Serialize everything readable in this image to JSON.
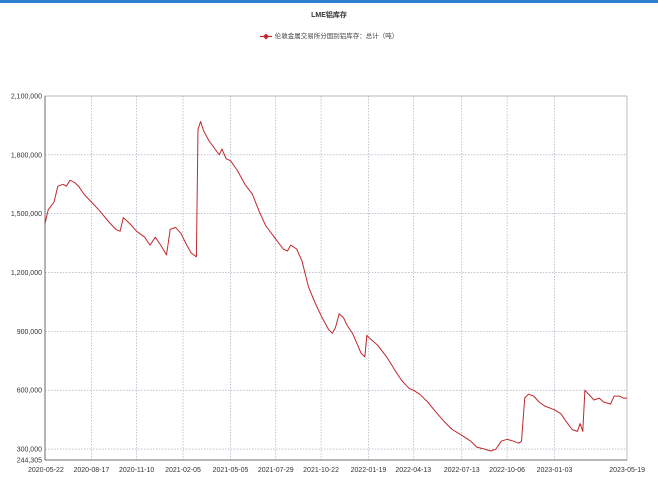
{
  "chart_data": {
    "type": "line",
    "title": "LME铝库存",
    "legend_position": "top-center",
    "grid": true,
    "series": [
      {
        "name": "伦敦金属交易所分国别铝库存：总计（吨）",
        "color": "#c0282d",
        "points": [
          [
            "2020-05-22",
            1450000
          ],
          [
            "2020-05-28",
            1520000
          ],
          [
            "2020-06-08",
            1560000
          ],
          [
            "2020-06-15",
            1640000
          ],
          [
            "2020-06-25",
            1650000
          ],
          [
            "2020-07-01",
            1640000
          ],
          [
            "2020-07-08",
            1670000
          ],
          [
            "2020-07-16",
            1660000
          ],
          [
            "2020-07-24",
            1640000
          ],
          [
            "2020-08-03",
            1600000
          ],
          [
            "2020-08-17",
            1560000
          ],
          [
            "2020-09-03",
            1510000
          ],
          [
            "2020-09-18",
            1460000
          ],
          [
            "2020-10-02",
            1420000
          ],
          [
            "2020-10-10",
            1410000
          ],
          [
            "2020-10-16",
            1480000
          ],
          [
            "2020-10-28",
            1450000
          ],
          [
            "2020-11-10",
            1410000
          ],
          [
            "2020-11-25",
            1380000
          ],
          [
            "2020-12-05",
            1340000
          ],
          [
            "2020-12-15",
            1380000
          ],
          [
            "2020-12-25",
            1340000
          ],
          [
            "2021-01-05",
            1290000
          ],
          [
            "2021-01-12",
            1420000
          ],
          [
            "2021-01-22",
            1430000
          ],
          [
            "2021-02-01",
            1400000
          ],
          [
            "2021-02-10",
            1350000
          ],
          [
            "2021-02-20",
            1300000
          ],
          [
            "2021-03-02",
            1280000
          ],
          [
            "2021-03-05",
            1930000
          ],
          [
            "2021-03-10",
            1970000
          ],
          [
            "2021-03-16",
            1920000
          ],
          [
            "2021-03-26",
            1870000
          ],
          [
            "2021-04-06",
            1830000
          ],
          [
            "2021-04-14",
            1800000
          ],
          [
            "2021-04-19",
            1830000
          ],
          [
            "2021-04-27",
            1780000
          ],
          [
            "2021-05-05",
            1770000
          ],
          [
            "2021-05-18",
            1720000
          ],
          [
            "2021-06-01",
            1650000
          ],
          [
            "2021-06-15",
            1600000
          ],
          [
            "2021-06-28",
            1510000
          ],
          [
            "2021-07-10",
            1440000
          ],
          [
            "2021-07-29",
            1370000
          ],
          [
            "2021-08-12",
            1320000
          ],
          [
            "2021-08-20",
            1310000
          ],
          [
            "2021-08-26",
            1340000
          ],
          [
            "2021-09-06",
            1320000
          ],
          [
            "2021-09-16",
            1260000
          ],
          [
            "2021-09-28",
            1130000
          ],
          [
            "2021-10-10",
            1050000
          ],
          [
            "2021-10-22",
            980000
          ],
          [
            "2021-11-05",
            910000
          ],
          [
            "2021-11-12",
            890000
          ],
          [
            "2021-11-18",
            920000
          ],
          [
            "2021-11-25",
            990000
          ],
          [
            "2021-12-03",
            970000
          ],
          [
            "2021-12-10",
            930000
          ],
          [
            "2021-12-20",
            890000
          ],
          [
            "2021-12-28",
            840000
          ],
          [
            "2022-01-05",
            790000
          ],
          [
            "2022-01-12",
            770000
          ],
          [
            "2022-01-16",
            880000
          ],
          [
            "2022-01-19",
            870000
          ],
          [
            "2022-02-05",
            830000
          ],
          [
            "2022-02-22",
            770000
          ],
          [
            "2022-03-10",
            700000
          ],
          [
            "2022-03-22",
            650000
          ],
          [
            "2022-04-05",
            610000
          ],
          [
            "2022-04-13",
            600000
          ],
          [
            "2022-04-25",
            580000
          ],
          [
            "2022-05-10",
            540000
          ],
          [
            "2022-05-25",
            490000
          ],
          [
            "2022-06-10",
            440000
          ],
          [
            "2022-06-25",
            400000
          ],
          [
            "2022-07-13",
            370000
          ],
          [
            "2022-07-30",
            340000
          ],
          [
            "2022-08-10",
            310000
          ],
          [
            "2022-08-25",
            300000
          ],
          [
            "2022-09-05",
            290000
          ],
          [
            "2022-09-15",
            300000
          ],
          [
            "2022-09-25",
            340000
          ],
          [
            "2022-10-06",
            350000
          ],
          [
            "2022-10-18",
            340000
          ],
          [
            "2022-10-28",
            330000
          ],
          [
            "2022-11-02",
            340000
          ],
          [
            "2022-11-08",
            560000
          ],
          [
            "2022-11-15",
            580000
          ],
          [
            "2022-11-25",
            570000
          ],
          [
            "2022-12-05",
            540000
          ],
          [
            "2022-12-15",
            520000
          ],
          [
            "2023-01-03",
            500000
          ],
          [
            "2023-01-15",
            480000
          ],
          [
            "2023-01-25",
            440000
          ],
          [
            "2023-02-05",
            400000
          ],
          [
            "2023-02-15",
            390000
          ],
          [
            "2023-02-20",
            430000
          ],
          [
            "2023-02-25",
            390000
          ],
          [
            "2023-03-01",
            600000
          ],
          [
            "2023-03-08",
            580000
          ],
          [
            "2023-03-18",
            550000
          ],
          [
            "2023-03-28",
            560000
          ],
          [
            "2023-04-05",
            540000
          ],
          [
            "2023-04-18",
            530000
          ],
          [
            "2023-04-25",
            570000
          ],
          [
            "2023-05-05",
            570000
          ],
          [
            "2023-05-12",
            560000
          ],
          [
            "2023-05-19",
            560000
          ]
        ]
      }
    ],
    "x_ticks": [
      "2020-05-22",
      "2020-08-17",
      "2020-11-10",
      "2021-02-05",
      "2021-05-05",
      "2021-07-29",
      "2021-10-22",
      "2022-01-19",
      "2022-04-13",
      "2022-07-13",
      "2022-10-06",
      "2023-01-03",
      "2023-05-19"
    ],
    "y_ticks": [
      244305,
      300000,
      600000,
      900000,
      1200000,
      1500000,
      1800000,
      2100000
    ],
    "y_tick_labels": [
      "244,305",
      "300,000",
      "600,000",
      "900,000",
      "1,200,000",
      "1,500,000",
      "1,800,000",
      "2,100,000"
    ],
    "ylim": [
      244305,
      2100000
    ],
    "xlim": [
      "2020-05-22",
      "2023-05-19"
    ]
  }
}
